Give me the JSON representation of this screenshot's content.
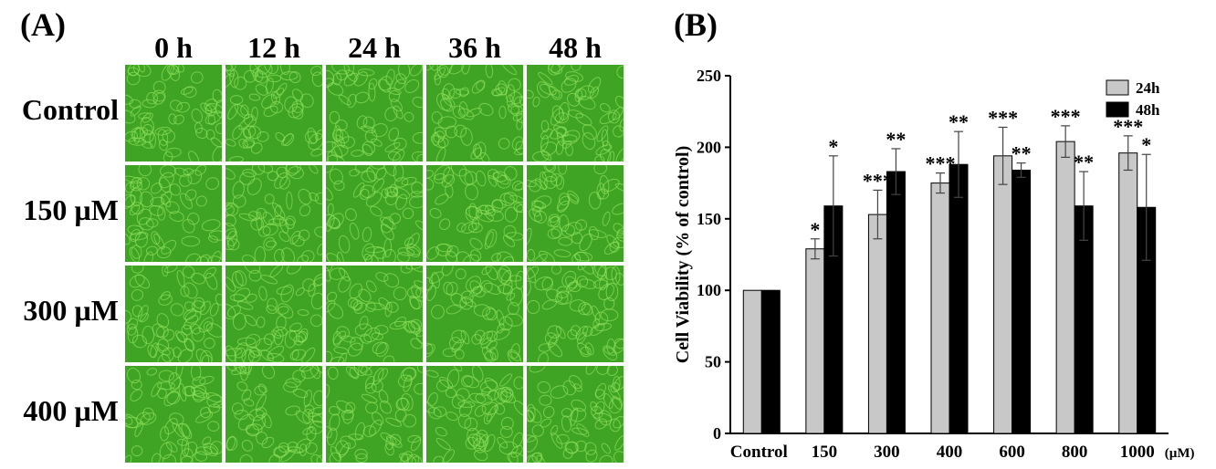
{
  "panel_a": {
    "label": "(A)",
    "columns": [
      "0 h",
      "12 h",
      "24 h",
      "36 h",
      "48 h"
    ],
    "rows": [
      "Control",
      "150 µM",
      "300 µM",
      "400 µM"
    ],
    "tile_color": "#3fa324"
  },
  "panel_b": {
    "label": "(B)"
  },
  "chart_data": {
    "type": "bar",
    "title": "",
    "xlabel": "",
    "x_unit": "(µM)",
    "ylabel": "Cell Viability (% of control)",
    "ylim": [
      0,
      250
    ],
    "yticks": [
      0,
      50,
      100,
      150,
      200,
      250
    ],
    "grid": false,
    "legend_position": "top-right",
    "categories": [
      "Control",
      "150",
      "300",
      "400",
      "600",
      "800",
      "1000"
    ],
    "series": [
      {
        "name": "24h",
        "color": "#c8c8c8",
        "values": [
          100,
          129,
          153,
          175,
          194,
          204,
          196
        ],
        "errors": [
          0,
          7,
          17,
          7,
          20,
          11,
          12
        ],
        "significance": [
          "",
          "*",
          "***",
          "***",
          "***",
          "***",
          "***"
        ]
      },
      {
        "name": "48h",
        "color": "#000000",
        "values": [
          100,
          159,
          183,
          188,
          184,
          159,
          158
        ],
        "errors": [
          0,
          35,
          16,
          23,
          5,
          24,
          37
        ],
        "significance": [
          "",
          "*",
          "**",
          "**",
          "**",
          "**",
          "*"
        ]
      }
    ]
  }
}
